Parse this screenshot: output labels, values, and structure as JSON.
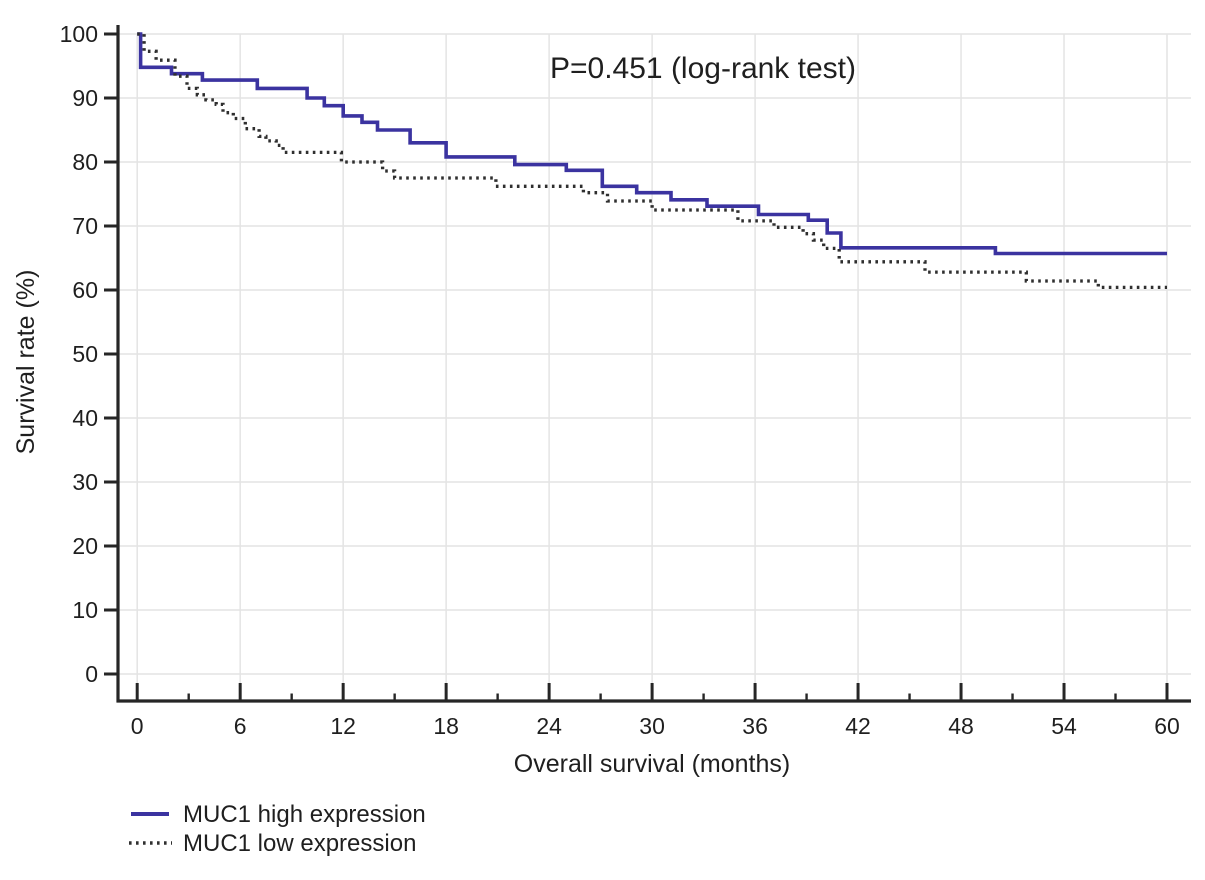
{
  "chart_data": {
    "type": "line",
    "variant": "kaplan_meier_step",
    "annotation": "P=0.451 (log-rank test)",
    "xlabel": "Overall survival (months)",
    "ylabel": "Survival rate (%)",
    "xlim": [
      0,
      60
    ],
    "ylim": [
      0,
      100
    ],
    "x_major_ticks": [
      0,
      6,
      12,
      18,
      24,
      30,
      36,
      42,
      48,
      54,
      60
    ],
    "x_minor_ticks": [
      3,
      9,
      15,
      21,
      27,
      33,
      39,
      45,
      51,
      57
    ],
    "y_ticks": [
      0,
      10,
      20,
      30,
      40,
      50,
      60,
      70,
      80,
      90,
      100
    ],
    "grid": {
      "show": true,
      "color": "#e4e4e4",
      "x_lines_at": [
        0,
        6,
        12,
        18,
        24,
        30,
        36,
        42,
        48,
        54,
        60
      ],
      "y_lines_at": [
        0,
        10,
        20,
        30,
        40,
        50,
        60,
        70,
        80,
        90,
        100
      ]
    },
    "axis_color": "#262626",
    "text_color": "#1f1f1f",
    "background": "#ffffff",
    "legend_position": "bottom-left",
    "series": [
      {
        "name": "MUC1 high expression",
        "line_style": "solid",
        "color": "#3b33a0",
        "step_points": [
          [
            0,
            100
          ],
          [
            0.2,
            94.8
          ],
          [
            2,
            93.8
          ],
          [
            3.8,
            92.8
          ],
          [
            7,
            91.5
          ],
          [
            9.9,
            90
          ],
          [
            10.9,
            88.8
          ],
          [
            12,
            87.2
          ],
          [
            13.1,
            86.2
          ],
          [
            14,
            85
          ],
          [
            15.9,
            83
          ],
          [
            18,
            80.8
          ],
          [
            22,
            79.6
          ],
          [
            25,
            78.7
          ],
          [
            27.1,
            76.2
          ],
          [
            29.1,
            75.2
          ],
          [
            31.1,
            74.1
          ],
          [
            33.2,
            73.1
          ],
          [
            36.2,
            71.8
          ],
          [
            39.1,
            70.9
          ],
          [
            40.2,
            68.9
          ],
          [
            41,
            66.6
          ],
          [
            50,
            65.7
          ],
          [
            60,
            65.7
          ]
        ]
      },
      {
        "name": "MUC1 low expression",
        "line_style": "dotted",
        "color": "#2f2f2f",
        "step_points": [
          [
            0,
            100
          ],
          [
            0.4,
            97.3
          ],
          [
            1.1,
            95.9
          ],
          [
            2.2,
            93.4
          ],
          [
            2.9,
            91.5
          ],
          [
            3.5,
            90.5
          ],
          [
            4,
            89.7
          ],
          [
            4.6,
            89
          ],
          [
            5,
            87.7
          ],
          [
            5.6,
            86.8
          ],
          [
            6.3,
            85.2
          ],
          [
            7.1,
            84
          ],
          [
            7.5,
            83.3
          ],
          [
            8.1,
            82.6
          ],
          [
            8.5,
            81.5
          ],
          [
            11.9,
            80
          ],
          [
            14.3,
            78.6
          ],
          [
            15,
            77.5
          ],
          [
            20.9,
            76.2
          ],
          [
            26,
            75.2
          ],
          [
            27.4,
            73.9
          ],
          [
            30,
            72.5
          ],
          [
            35,
            70.8
          ],
          [
            37.1,
            69.8
          ],
          [
            38.8,
            68.8
          ],
          [
            39.4,
            67.8
          ],
          [
            40,
            66.5
          ],
          [
            40.9,
            64.4
          ],
          [
            45.9,
            62.8
          ],
          [
            51.8,
            61.4
          ],
          [
            56,
            60.4
          ],
          [
            60,
            60.4
          ]
        ]
      }
    ]
  }
}
